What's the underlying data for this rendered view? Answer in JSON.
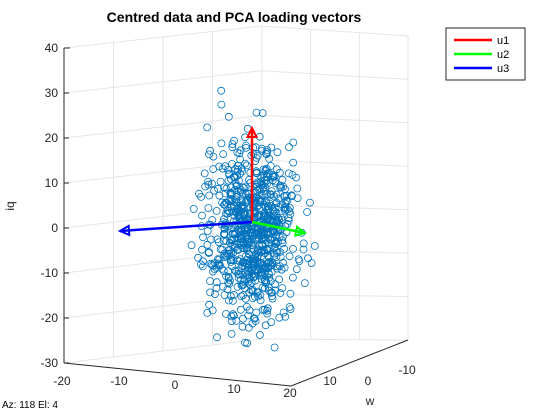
{
  "chart_data": {
    "type": "scatter",
    "title": "Centred data and PCA loading vectors",
    "ylabel": "iq",
    "xlabel": "",
    "wlabel": "w",
    "ylim": [
      -30,
      40
    ],
    "yticks": [
      "-30",
      "-20",
      "-10",
      "0",
      "10",
      "20",
      "30",
      "40"
    ],
    "xticks": [
      "-20",
      "-10",
      "0",
      "10",
      "20"
    ],
    "wticks": [
      "20",
      "10",
      "0",
      "-10"
    ],
    "grid": true,
    "legend_position": "top-right",
    "marker_color": "#0072BD",
    "series": [
      {
        "name": "u1",
        "color": "#FF0000"
      },
      {
        "name": "u2",
        "color": "#00FF00"
      },
      {
        "name": "u3",
        "color": "#0000FF"
      }
    ],
    "scatter_summary": {
      "count": 800,
      "center_iq": 0,
      "iq_std": 9.5,
      "iq_max": 35,
      "iq_min": -27
    }
  },
  "status": {
    "az_label": "Az:",
    "az_value": "118",
    "el_label": "El:",
    "el_value": "4"
  }
}
